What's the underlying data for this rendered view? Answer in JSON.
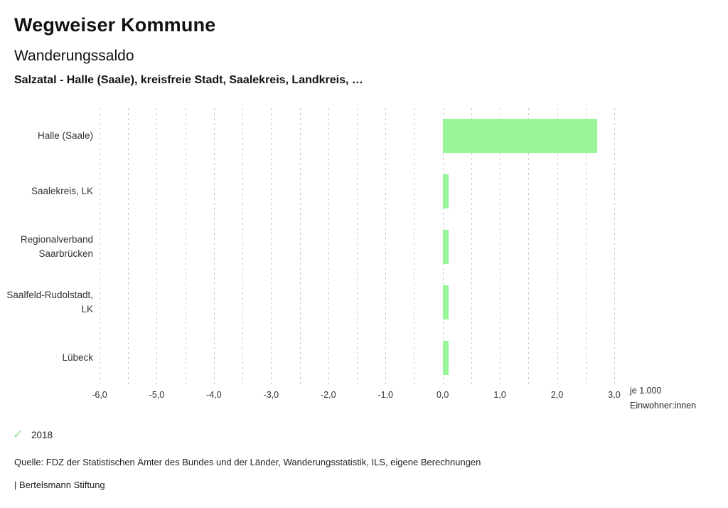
{
  "header": {
    "title": "Wegweiser Kommune",
    "subtitle": "Wanderungssaldo",
    "selection": "Salzatal - Halle (Saale), kreisfreie Stadt, Saalekreis, Landkreis, …"
  },
  "chart_data": {
    "type": "bar",
    "orientation": "horizontal",
    "title": "Wanderungssaldo",
    "categories": [
      "Halle (Saale)",
      "Saalekreis, LK",
      "Regionalverband Saarbrücken",
      "Saalfeld-Rudolstadt, LK",
      "Lübeck"
    ],
    "values": [
      2.7,
      0.1,
      0.1,
      0.1,
      0.1
    ],
    "series_name": "2018",
    "xlim": [
      -6.0,
      3.0
    ],
    "grid": true,
    "grid_step": 0.5,
    "xticks": [
      -6,
      -5,
      -4,
      -3,
      -2,
      -1,
      0,
      1,
      2,
      3
    ],
    "xtick_labels": [
      "-6,0",
      "-5,0",
      "-4,0",
      "-3,0",
      "-2,0",
      "-1,0",
      "0,0",
      "1,0",
      "2,0",
      "3,0"
    ],
    "bar_color": "#98f598",
    "gridline_color": "#c9c9c9",
    "unit": [
      "je 1.000",
      "Einwohner:innen"
    ],
    "legend_position": "bottom-left"
  },
  "legend": {
    "check_glyph": "✓",
    "check_color": "#8ee08e",
    "year": "2018"
  },
  "footer": {
    "source": "Quelle: FDZ der Statistischen Ämter des Bundes und der Länder, Wanderungsstatistik, ILS, eigene Berechnungen",
    "attribution": "| Bertelsmann Stiftung"
  }
}
